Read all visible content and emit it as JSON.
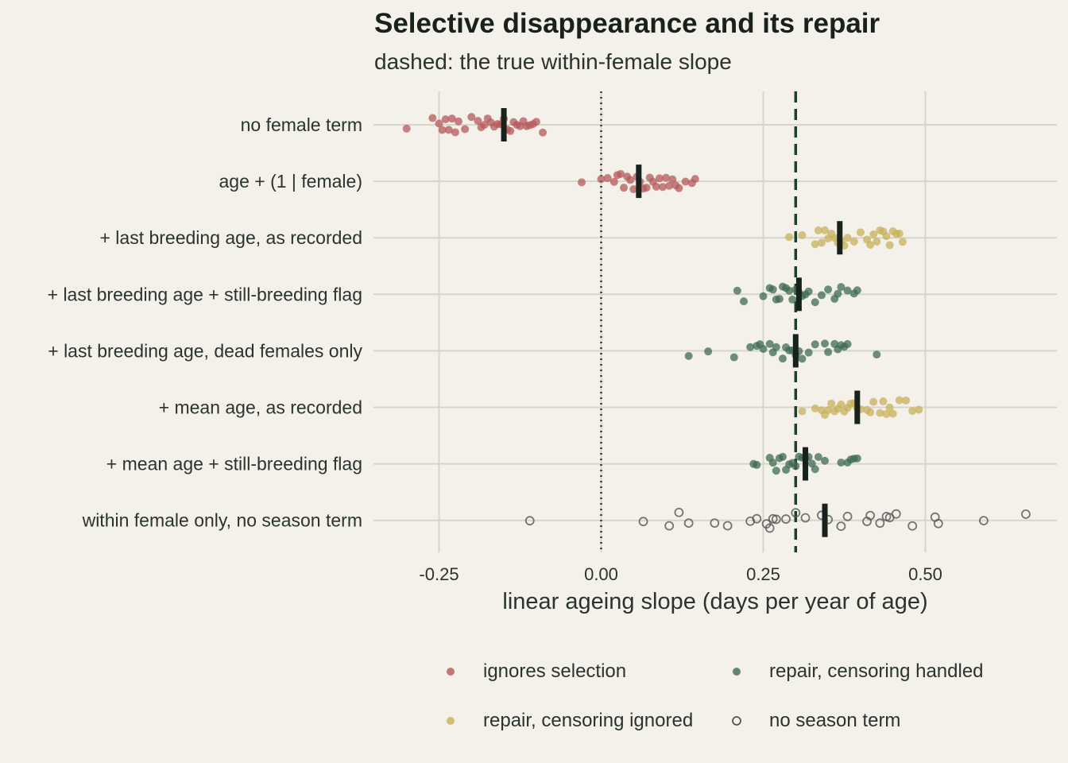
{
  "title": "Selective disappearance and its repair",
  "subtitle": "dashed: the true within-female slope",
  "chart_data": {
    "type": "scatter",
    "orientation": "horizontal-strip",
    "xlabel": "linear ageing slope (days per year of age)",
    "xlim": [
      -0.35,
      0.7
    ],
    "xticks": [
      -0.25,
      0.0,
      0.25,
      0.5
    ],
    "xtick_labels": [
      "-0.25",
      "0.00",
      "0.25",
      "0.50"
    ],
    "reference_lines": [
      {
        "x": 0.0,
        "style": "dotted"
      },
      {
        "x": 0.3,
        "style": "dashed",
        "meaning": "true within-female slope"
      }
    ],
    "grid": true,
    "legend_position": "bottom",
    "groups": [
      {
        "key": "ignores",
        "label": "ignores selection",
        "color": "#b5585b",
        "marker": "filled"
      },
      {
        "key": "repair_ignored",
        "label": "repair, censoring ignored",
        "color": "#c8b05c",
        "marker": "filled"
      },
      {
        "key": "repair_handled",
        "label": "repair, censoring handled",
        "color": "#3f6b50",
        "marker": "filled"
      },
      {
        "key": "no_season",
        "label": "no season term",
        "color": "#555555",
        "marker": "open"
      }
    ],
    "rows": [
      {
        "label": "no female term",
        "group": "ignores",
        "median": -0.15,
        "values": [
          -0.3,
          -0.26,
          -0.25,
          -0.245,
          -0.24,
          -0.235,
          -0.23,
          -0.225,
          -0.22,
          -0.21,
          -0.2,
          -0.19,
          -0.185,
          -0.18,
          -0.175,
          -0.17,
          -0.165,
          -0.16,
          -0.155,
          -0.15,
          -0.145,
          -0.14,
          -0.135,
          -0.13,
          -0.125,
          -0.12,
          -0.115,
          -0.11,
          -0.105,
          -0.1,
          -0.09
        ]
      },
      {
        "label": "age + (1 | female)",
        "group": "ignores",
        "median": 0.058,
        "values": [
          -0.03,
          0.0,
          0.01,
          0.02,
          0.025,
          0.03,
          0.035,
          0.04,
          0.045,
          0.05,
          0.055,
          0.06,
          0.065,
          0.07,
          0.075,
          0.08,
          0.085,
          0.09,
          0.095,
          0.1,
          0.105,
          0.11,
          0.115,
          0.12,
          0.13,
          0.14,
          0.145
        ]
      },
      {
        "label": "+ last breeding age, as recorded",
        "group": "repair_ignored",
        "median": 0.368,
        "values": [
          0.29,
          0.31,
          0.33,
          0.335,
          0.34,
          0.345,
          0.35,
          0.355,
          0.36,
          0.365,
          0.37,
          0.375,
          0.38,
          0.39,
          0.4,
          0.41,
          0.415,
          0.42,
          0.425,
          0.43,
          0.435,
          0.44,
          0.445,
          0.45,
          0.455,
          0.46,
          0.465
        ]
      },
      {
        "label": "+ last breeding age + still-breeding flag",
        "group": "repair_handled",
        "median": 0.305,
        "values": [
          0.21,
          0.22,
          0.25,
          0.26,
          0.265,
          0.27,
          0.275,
          0.28,
          0.285,
          0.29,
          0.295,
          0.3,
          0.305,
          0.31,
          0.315,
          0.32,
          0.33,
          0.34,
          0.35,
          0.36,
          0.365,
          0.37,
          0.38,
          0.39,
          0.395
        ]
      },
      {
        "label": "+ last breeding age, dead females only",
        "group": "repair_handled",
        "median": 0.3,
        "values": [
          0.135,
          0.165,
          0.205,
          0.23,
          0.24,
          0.245,
          0.25,
          0.26,
          0.265,
          0.27,
          0.28,
          0.285,
          0.29,
          0.295,
          0.3,
          0.305,
          0.31,
          0.32,
          0.33,
          0.345,
          0.35,
          0.36,
          0.365,
          0.37,
          0.375,
          0.38,
          0.425
        ]
      },
      {
        "label": "+ mean age, as recorded",
        "group": "repair_ignored",
        "median": 0.395,
        "values": [
          0.31,
          0.33,
          0.34,
          0.345,
          0.35,
          0.355,
          0.36,
          0.365,
          0.37,
          0.375,
          0.38,
          0.385,
          0.39,
          0.395,
          0.4,
          0.41,
          0.415,
          0.42,
          0.43,
          0.435,
          0.44,
          0.445,
          0.45,
          0.46,
          0.47,
          0.48,
          0.49
        ]
      },
      {
        "label": "+ mean age + still-breeding flag",
        "group": "repair_handled",
        "median": 0.315,
        "values": [
          0.235,
          0.24,
          0.26,
          0.265,
          0.27,
          0.275,
          0.28,
          0.285,
          0.29,
          0.295,
          0.3,
          0.305,
          0.31,
          0.315,
          0.32,
          0.325,
          0.33,
          0.335,
          0.345,
          0.37,
          0.38,
          0.385,
          0.39,
          0.395
        ]
      },
      {
        "label": "within female only, no season term",
        "group": "no_season",
        "median": 0.345,
        "values": [
          -0.11,
          0.065,
          0.105,
          0.12,
          0.135,
          0.175,
          0.195,
          0.23,
          0.24,
          0.255,
          0.26,
          0.265,
          0.27,
          0.285,
          0.3,
          0.315,
          0.34,
          0.35,
          0.37,
          0.38,
          0.41,
          0.415,
          0.43,
          0.44,
          0.445,
          0.455,
          0.48,
          0.515,
          0.52,
          0.59,
          0.655
        ]
      }
    ]
  }
}
